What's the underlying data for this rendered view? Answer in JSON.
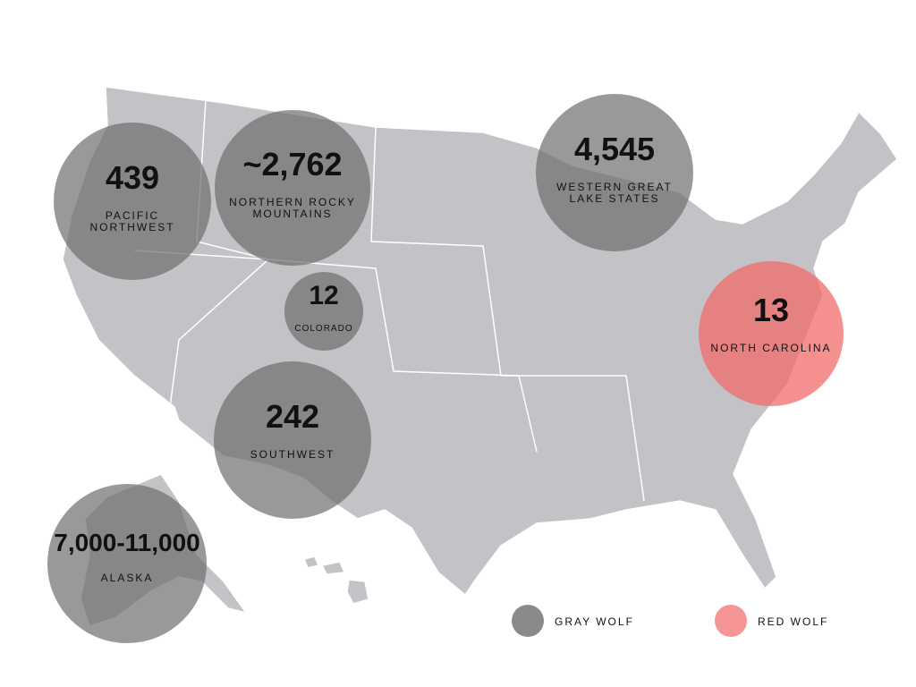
{
  "map": {
    "regions": [
      {
        "value": "439",
        "name": "PACIFIC\nNORTHWEST",
        "color": "#6e6e6e"
      },
      {
        "value": "~2,762",
        "name": "NORTHERN ROCKY\nMOUNTAINS",
        "color": "#6e6e6e"
      },
      {
        "value": "12",
        "name": "COLORADO",
        "color": "#6e6e6e"
      },
      {
        "value": "4,545",
        "name": "WESTERN GREAT\nLAKE STATES",
        "color": "#6e6e6e"
      },
      {
        "value": "13",
        "name": "NORTH CAROLINA",
        "color": "#f26b6b"
      },
      {
        "value": "242",
        "name": "SOUTHWEST",
        "color": "#6e6e6e"
      },
      {
        "value": "7,000-11,000",
        "name": "ALASKA",
        "color": "#6e6e6e"
      }
    ],
    "legend": [
      {
        "name": "GRAY WOLF",
        "color": "#8a8a8a"
      },
      {
        "name": "RED WOLF",
        "color": "#f59595"
      }
    ]
  }
}
